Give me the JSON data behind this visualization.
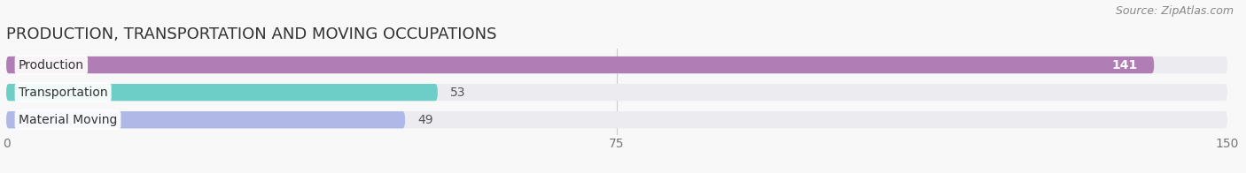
{
  "title": "PRODUCTION, TRANSPORTATION AND MOVING OCCUPATIONS",
  "source": "Source: ZipAtlas.com",
  "categories": [
    "Production",
    "Transportation",
    "Material Moving"
  ],
  "values": [
    141,
    53,
    49
  ],
  "bar_colors": [
    "#b07db5",
    "#6dcec8",
    "#b0b8e8"
  ],
  "bar_bg_color": "#ebebf0",
  "value_inside_color": [
    "#ffffff",
    "#555555",
    "#555555"
  ],
  "xlim": [
    0,
    150
  ],
  "xticks": [
    0,
    75,
    150
  ],
  "title_fontsize": 13,
  "label_fontsize": 10,
  "value_fontsize": 10,
  "source_fontsize": 9,
  "figsize": [
    14.06,
    1.96
  ],
  "dpi": 100,
  "bg_color": "#f8f8f8"
}
